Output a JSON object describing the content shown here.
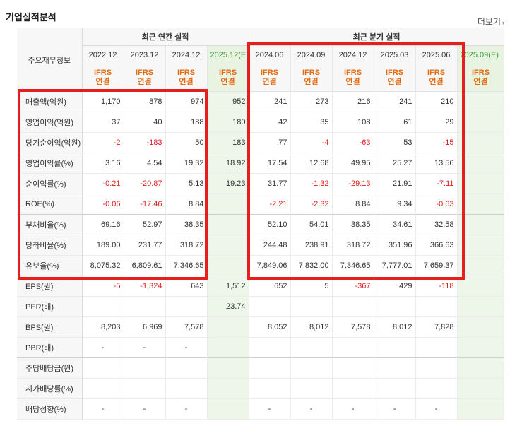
{
  "section_title": "기업실적분석",
  "more_link": "더보기",
  "header": {
    "corner_label": "주요재무정보",
    "annual_group": "최근 연간 실적",
    "quarter_group": "최근 분기 실적",
    "annual_periods": [
      "2022.12",
      "2023.12",
      "2024.12",
      "2025.12(E"
    ],
    "quarter_periods": [
      "2024.06",
      "2024.09",
      "2024.12",
      "2025.03",
      "2025.06",
      "2025.09(E)"
    ],
    "ifrs_top": "IFRS",
    "ifrs_bottom": "연결"
  },
  "rows": [
    {
      "label": "매출액(억원)",
      "values": [
        "1,170",
        "878",
        "974",
        "952",
        "241",
        "273",
        "216",
        "241",
        "210",
        ""
      ]
    },
    {
      "label": "영업이익(억원)",
      "values": [
        "37",
        "40",
        "188",
        "180",
        "42",
        "35",
        "108",
        "61",
        "29",
        ""
      ]
    },
    {
      "label": "당기순이익(억원)",
      "values": [
        "-2",
        "-183",
        "50",
        "183",
        "77",
        "-4",
        "-63",
        "53",
        "-15",
        ""
      ]
    },
    {
      "label": "영업이익률(%)",
      "values": [
        "3.16",
        "4.54",
        "19.32",
        "18.92",
        "17.54",
        "12.68",
        "49.95",
        "25.27",
        "13.56",
        ""
      ]
    },
    {
      "label": "순이익률(%)",
      "values": [
        "-0.21",
        "-20.87",
        "5.13",
        "19.23",
        "31.77",
        "-1.32",
        "-29.13",
        "21.91",
        "-7.11",
        ""
      ]
    },
    {
      "label": "ROE(%)",
      "values": [
        "-0.06",
        "-17.46",
        "8.84",
        "",
        "-2.21",
        "-2.32",
        "8.84",
        "9.34",
        "-0.63",
        ""
      ]
    },
    {
      "label": "부채비율(%)",
      "values": [
        "69.16",
        "52.97",
        "38.35",
        "",
        "52.10",
        "54.01",
        "38.35",
        "34.61",
        "32.58",
        ""
      ]
    },
    {
      "label": "당좌비율(%)",
      "values": [
        "189.00",
        "231.77",
        "318.72",
        "",
        "244.48",
        "238.91",
        "318.72",
        "351.96",
        "366.63",
        ""
      ]
    },
    {
      "label": "유보율(%)",
      "values": [
        "8,075.32",
        "6,809.61",
        "7,346.65",
        "",
        "7,849.06",
        "7,832.00",
        "7,346.65",
        "7,777.01",
        "7,659.37",
        ""
      ]
    },
    {
      "label": "EPS(원)",
      "values": [
        "-5",
        "-1,324",
        "643",
        "1,512",
        "652",
        "5",
        "-367",
        "429",
        "-118",
        ""
      ]
    },
    {
      "label": "PER(배)",
      "values": [
        "",
        "",
        "",
        "23.74",
        "",
        "",
        "",
        "",
        "",
        ""
      ]
    },
    {
      "label": "BPS(원)",
      "values": [
        "8,203",
        "6,969",
        "7,578",
        "",
        "8,052",
        "8,012",
        "7,578",
        "8,012",
        "7,828",
        ""
      ]
    },
    {
      "label": "PBR(배)",
      "values": [
        "-",
        "-",
        "-",
        "",
        "",
        "",
        "",
        "",
        "",
        ""
      ]
    },
    {
      "label": "주당배당금(원)",
      "values": [
        "",
        "",
        "",
        "",
        "",
        "",
        "",
        "",
        "",
        ""
      ]
    },
    {
      "label": "시가배당률(%)",
      "values": [
        "",
        "",
        "",
        "",
        "",
        "",
        "",
        "",
        "",
        ""
      ]
    },
    {
      "label": "배당성향(%)",
      "values": [
        "-",
        "-",
        "-",
        "",
        "-",
        "-",
        "-",
        "-",
        "-",
        ""
      ]
    }
  ],
  "colors": {
    "negative": "#e02020",
    "ifrs": "#e36b12",
    "estimate_bg": "#eef6ea",
    "highlight_box": "#e61e1e"
  }
}
